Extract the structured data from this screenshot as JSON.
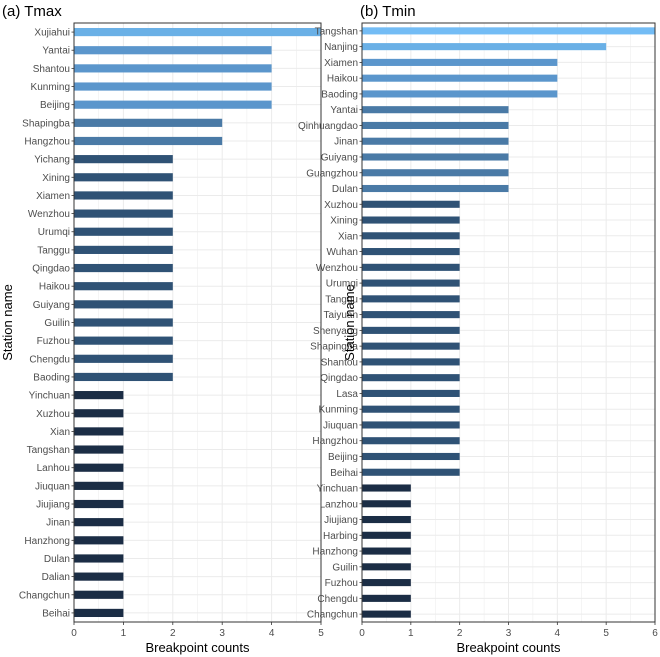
{
  "chart_data": [
    {
      "type": "bar",
      "orientation": "horizontal",
      "title": "(a) Tmax",
      "xlabel": "Breakpoint counts",
      "ylabel": "Station name",
      "xlim": [
        0,
        5
      ],
      "xticks": [
        0,
        1,
        2,
        3,
        4,
        5
      ],
      "grid": true,
      "categories": [
        "Xujiahui",
        "Yantai",
        "Shantou",
        "Kunming",
        "Beijing",
        "Shapingba",
        "Hangzhou",
        "Yichang",
        "Xining",
        "Xiamen",
        "Wenzhou",
        "Urumqi",
        "Tanggu",
        "Qingdao",
        "Haikou",
        "Guiyang",
        "Guilin",
        "Fuzhou",
        "Chengdu",
        "Baoding",
        "Yinchuan",
        "Xuzhou",
        "Xian",
        "Tangshan",
        "Lanhou",
        "Jiuquan",
        "Jiujiang",
        "Jinan",
        "Hanzhong",
        "Dulan",
        "Dalian",
        "Changchun",
        "Beihai"
      ],
      "values": [
        5,
        4,
        4,
        4,
        4,
        3,
        3,
        2,
        2,
        2,
        2,
        2,
        2,
        2,
        2,
        2,
        2,
        2,
        2,
        2,
        1,
        1,
        1,
        1,
        1,
        1,
        1,
        1,
        1,
        1,
        1,
        1,
        1
      ]
    },
    {
      "type": "bar",
      "orientation": "horizontal",
      "title": "(b) Tmin",
      "xlabel": "Breakpoint counts",
      "ylabel": "Station name",
      "xlim": [
        0,
        6
      ],
      "xticks": [
        0,
        1,
        2,
        3,
        4,
        5,
        6
      ],
      "grid": true,
      "categories": [
        "Tangshan",
        "Nanjing",
        "Xiamen",
        "Haikou",
        "Baoding",
        "Yantai",
        "Qinhuangdao",
        "Jinan",
        "Guiyang",
        "Guangzhou",
        "Dulan",
        "Xuzhou",
        "Xining",
        "Xian",
        "Wuhan",
        "Wenzhou",
        "Urumqi",
        "Tanggu",
        "Taiyuan",
        "Shenyang",
        "Shapingba",
        "Shantou",
        "Qingdao",
        "Lasa",
        "Kunming",
        "Jiuquan",
        "Hangzhou",
        "Beijing",
        "Beihai",
        "Yinchuan",
        "Lanzhou",
        "Jiujiang",
        "Harbing",
        "Hanzhong",
        "Guilin",
        "Fuzhou",
        "Chengdu",
        "Changchun"
      ],
      "values": [
        6,
        5,
        4,
        4,
        4,
        3,
        3,
        3,
        3,
        3,
        3,
        2,
        2,
        2,
        2,
        2,
        2,
        2,
        2,
        2,
        2,
        2,
        2,
        2,
        2,
        2,
        2,
        2,
        2,
        1,
        1,
        1,
        1,
        1,
        1,
        1,
        1,
        1
      ]
    }
  ],
  "colors": {
    "1": "#1b2d45",
    "2": "#2f5275",
    "3": "#4a7aa6",
    "4": "#5b96cc",
    "5": "#6ab0e6",
    "6": "#73bcf5",
    "grid": "#ebebeb",
    "axis_text": "#4d4d4d",
    "panel_border": "#333333"
  }
}
